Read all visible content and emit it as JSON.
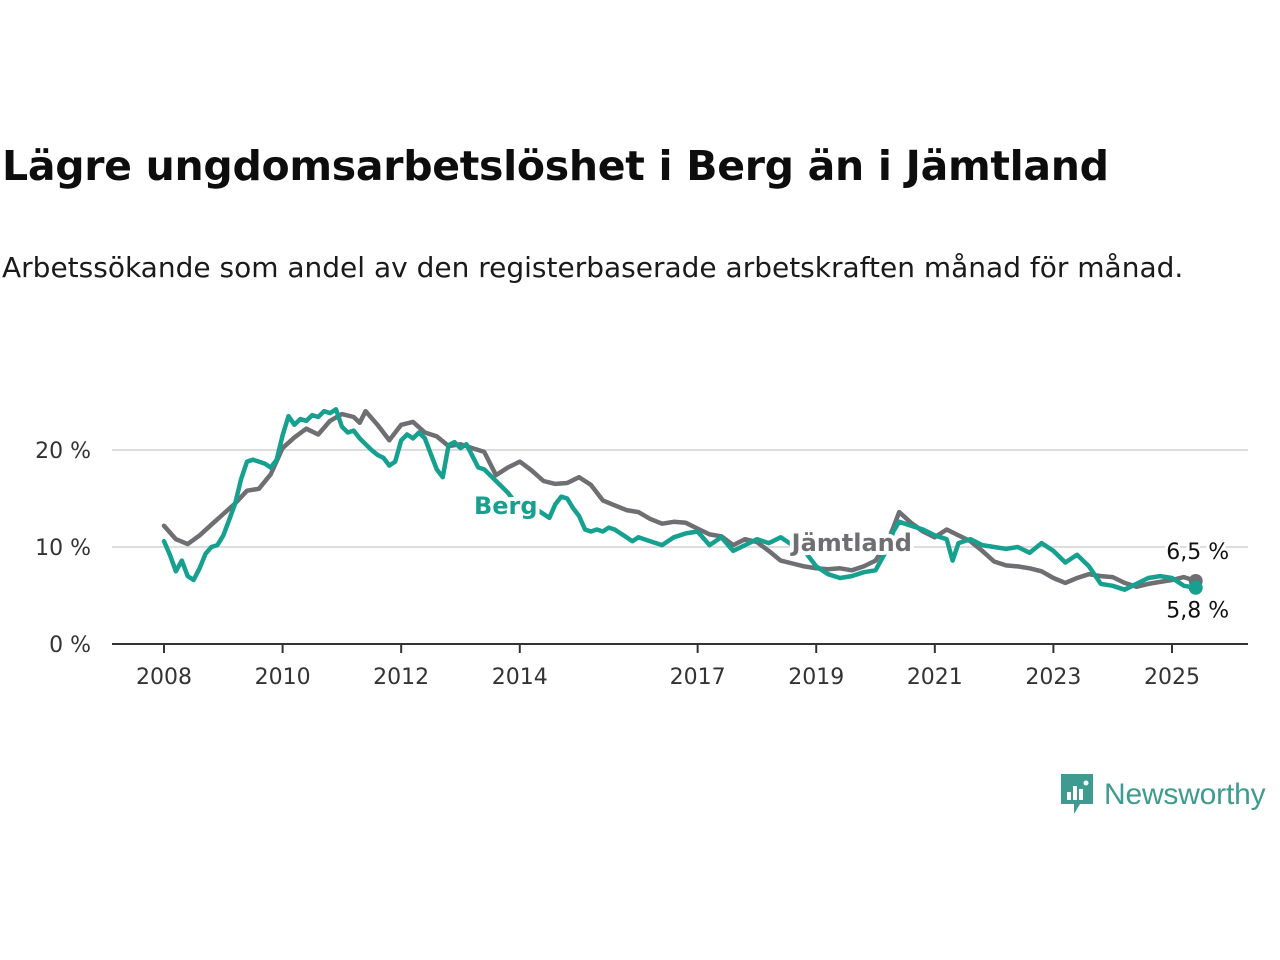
{
  "title": "Lägre ungdomsarbetslöshet i Berg än i Jämtland",
  "subtitle": "Arbetssökande som andel av den registerbaserade arbetskraften månad för månad.",
  "brand": {
    "name": "Newsworthy",
    "color": "#3d9b8f"
  },
  "chart_data": {
    "type": "line",
    "y_ticks": [
      {
        "value": 0,
        "label": "0 %"
      },
      {
        "value": 10,
        "label": "10 %"
      },
      {
        "value": 20,
        "label": "20 %"
      }
    ],
    "x_ticks": [
      "2008",
      "2010",
      "2012",
      "2014",
      "2017",
      "2019",
      "2021",
      "2023",
      "2025"
    ],
    "x_range": [
      2008,
      2026.3
    ],
    "ylim": [
      0,
      25
    ],
    "grid": true,
    "series": [
      {
        "name": "Jämtland",
        "color": "#6e6e73",
        "end_label": "6,5 %",
        "points": [
          [
            2008.0,
            12.2
          ],
          [
            2008.2,
            10.8
          ],
          [
            2008.4,
            10.3
          ],
          [
            2008.6,
            11.2
          ],
          [
            2008.8,
            12.3
          ],
          [
            2009.0,
            13.4
          ],
          [
            2009.2,
            14.5
          ],
          [
            2009.4,
            15.8
          ],
          [
            2009.6,
            16.0
          ],
          [
            2009.8,
            17.5
          ],
          [
            2010.0,
            20.2
          ],
          [
            2010.2,
            21.3
          ],
          [
            2010.4,
            22.2
          ],
          [
            2010.6,
            21.6
          ],
          [
            2010.8,
            23.0
          ],
          [
            2011.0,
            23.7
          ],
          [
            2011.2,
            23.4
          ],
          [
            2011.3,
            22.8
          ],
          [
            2011.4,
            24.0
          ],
          [
            2011.6,
            22.6
          ],
          [
            2011.8,
            21.0
          ],
          [
            2012.0,
            22.6
          ],
          [
            2012.2,
            22.9
          ],
          [
            2012.4,
            21.8
          ],
          [
            2012.6,
            21.4
          ],
          [
            2012.8,
            20.4
          ],
          [
            2013.0,
            20.6
          ],
          [
            2013.2,
            20.2
          ],
          [
            2013.4,
            19.8
          ],
          [
            2013.6,
            17.4
          ],
          [
            2013.8,
            18.2
          ],
          [
            2014.0,
            18.8
          ],
          [
            2014.2,
            17.9
          ],
          [
            2014.4,
            16.8
          ],
          [
            2014.6,
            16.5
          ],
          [
            2014.8,
            16.6
          ],
          [
            2015.0,
            17.2
          ],
          [
            2015.2,
            16.4
          ],
          [
            2015.4,
            14.8
          ],
          [
            2015.6,
            14.3
          ],
          [
            2015.8,
            13.8
          ],
          [
            2016.0,
            13.6
          ],
          [
            2016.2,
            12.9
          ],
          [
            2016.4,
            12.4
          ],
          [
            2016.6,
            12.6
          ],
          [
            2016.8,
            12.5
          ],
          [
            2017.0,
            11.9
          ],
          [
            2017.2,
            11.3
          ],
          [
            2017.4,
            11.1
          ],
          [
            2017.6,
            10.2
          ],
          [
            2017.8,
            10.8
          ],
          [
            2018.0,
            10.5
          ],
          [
            2018.2,
            9.6
          ],
          [
            2018.4,
            8.6
          ],
          [
            2018.6,
            8.3
          ],
          [
            2018.8,
            8.0
          ],
          [
            2019.0,
            7.8
          ],
          [
            2019.2,
            7.7
          ],
          [
            2019.4,
            7.8
          ],
          [
            2019.6,
            7.6
          ],
          [
            2019.8,
            8.0
          ],
          [
            2020.0,
            8.6
          ],
          [
            2020.2,
            10.5
          ],
          [
            2020.3,
            12.0
          ],
          [
            2020.4,
            13.6
          ],
          [
            2020.6,
            12.5
          ],
          [
            2020.8,
            11.6
          ],
          [
            2021.0,
            11.0
          ],
          [
            2021.2,
            11.8
          ],
          [
            2021.4,
            11.2
          ],
          [
            2021.6,
            10.6
          ],
          [
            2021.8,
            9.6
          ],
          [
            2022.0,
            8.5
          ],
          [
            2022.2,
            8.1
          ],
          [
            2022.4,
            8.0
          ],
          [
            2022.6,
            7.8
          ],
          [
            2022.8,
            7.5
          ],
          [
            2023.0,
            6.8
          ],
          [
            2023.2,
            6.3
          ],
          [
            2023.4,
            6.8
          ],
          [
            2023.6,
            7.2
          ],
          [
            2023.8,
            7.0
          ],
          [
            2024.0,
            6.9
          ],
          [
            2024.2,
            6.3
          ],
          [
            2024.4,
            5.9
          ],
          [
            2024.6,
            6.2
          ],
          [
            2024.8,
            6.4
          ],
          [
            2025.0,
            6.6
          ],
          [
            2025.2,
            6.9
          ],
          [
            2025.4,
            6.5
          ]
        ]
      },
      {
        "name": "Berg",
        "color": "#15a08f",
        "end_label": "5,8 %",
        "points": [
          [
            2008.0,
            10.6
          ],
          [
            2008.1,
            9.2
          ],
          [
            2008.2,
            7.5
          ],
          [
            2008.3,
            8.6
          ],
          [
            2008.4,
            7.0
          ],
          [
            2008.5,
            6.6
          ],
          [
            2008.6,
            7.8
          ],
          [
            2008.7,
            9.3
          ],
          [
            2008.8,
            10.0
          ],
          [
            2008.9,
            10.2
          ],
          [
            2009.0,
            11.2
          ],
          [
            2009.1,
            12.8
          ],
          [
            2009.2,
            14.5
          ],
          [
            2009.3,
            17.0
          ],
          [
            2009.4,
            18.8
          ],
          [
            2009.5,
            19.0
          ],
          [
            2009.6,
            18.8
          ],
          [
            2009.7,
            18.6
          ],
          [
            2009.8,
            18.2
          ],
          [
            2009.9,
            19.0
          ],
          [
            2010.0,
            21.5
          ],
          [
            2010.1,
            23.5
          ],
          [
            2010.2,
            22.6
          ],
          [
            2010.3,
            23.2
          ],
          [
            2010.4,
            23.0
          ],
          [
            2010.5,
            23.6
          ],
          [
            2010.6,
            23.4
          ],
          [
            2010.7,
            24.0
          ],
          [
            2010.8,
            23.8
          ],
          [
            2010.9,
            24.2
          ],
          [
            2011.0,
            22.4
          ],
          [
            2011.1,
            21.8
          ],
          [
            2011.2,
            22.0
          ],
          [
            2011.3,
            21.2
          ],
          [
            2011.4,
            20.6
          ],
          [
            2011.5,
            20.0
          ],
          [
            2011.6,
            19.5
          ],
          [
            2011.7,
            19.2
          ],
          [
            2011.8,
            18.4
          ],
          [
            2011.9,
            18.8
          ],
          [
            2012.0,
            21.0
          ],
          [
            2012.1,
            21.6
          ],
          [
            2012.2,
            21.2
          ],
          [
            2012.3,
            21.8
          ],
          [
            2012.4,
            21.2
          ],
          [
            2012.5,
            19.6
          ],
          [
            2012.6,
            18.0
          ],
          [
            2012.7,
            17.2
          ],
          [
            2012.8,
            20.5
          ],
          [
            2012.9,
            20.8
          ],
          [
            2013.0,
            20.2
          ],
          [
            2013.1,
            20.6
          ],
          [
            2013.2,
            19.4
          ],
          [
            2013.3,
            18.2
          ],
          [
            2013.4,
            18.0
          ],
          [
            2013.5,
            17.4
          ],
          [
            2013.6,
            16.8
          ],
          [
            2013.7,
            16.2
          ],
          [
            2013.8,
            15.6
          ],
          [
            2013.9,
            14.8
          ],
          [
            2014.0,
            14.2
          ],
          [
            2014.1,
            13.6
          ],
          [
            2014.2,
            13.2
          ],
          [
            2014.3,
            13.8
          ],
          [
            2014.4,
            13.4
          ],
          [
            2014.5,
            13.0
          ],
          [
            2014.6,
            14.4
          ],
          [
            2014.7,
            15.2
          ],
          [
            2014.8,
            15.0
          ],
          [
            2014.9,
            14.0
          ],
          [
            2015.0,
            13.2
          ],
          [
            2015.1,
            11.8
          ],
          [
            2015.2,
            11.6
          ],
          [
            2015.3,
            11.8
          ],
          [
            2015.4,
            11.6
          ],
          [
            2015.5,
            12.0
          ],
          [
            2015.6,
            11.8
          ],
          [
            2015.7,
            11.4
          ],
          [
            2015.8,
            11.0
          ],
          [
            2015.9,
            10.6
          ],
          [
            2016.0,
            11.0
          ],
          [
            2016.2,
            10.6
          ],
          [
            2016.4,
            10.2
          ],
          [
            2016.6,
            11.0
          ],
          [
            2016.8,
            11.4
          ],
          [
            2017.0,
            11.6
          ],
          [
            2017.2,
            10.2
          ],
          [
            2017.4,
            11.0
          ],
          [
            2017.6,
            9.6
          ],
          [
            2017.8,
            10.2
          ],
          [
            2018.0,
            10.8
          ],
          [
            2018.2,
            10.4
          ],
          [
            2018.4,
            11.0
          ],
          [
            2018.6,
            10.2
          ],
          [
            2018.8,
            9.6
          ],
          [
            2019.0,
            8.0
          ],
          [
            2019.2,
            7.2
          ],
          [
            2019.4,
            6.8
          ],
          [
            2019.6,
            7.0
          ],
          [
            2019.8,
            7.4
          ],
          [
            2020.0,
            7.6
          ],
          [
            2020.2,
            9.8
          ],
          [
            2020.3,
            11.6
          ],
          [
            2020.4,
            12.6
          ],
          [
            2020.6,
            12.2
          ],
          [
            2020.8,
            11.8
          ],
          [
            2021.0,
            11.2
          ],
          [
            2021.2,
            10.8
          ],
          [
            2021.3,
            8.6
          ],
          [
            2021.4,
            10.4
          ],
          [
            2021.6,
            10.8
          ],
          [
            2021.8,
            10.2
          ],
          [
            2022.0,
            10.0
          ],
          [
            2022.2,
            9.8
          ],
          [
            2022.4,
            10.0
          ],
          [
            2022.6,
            9.4
          ],
          [
            2022.8,
            10.4
          ],
          [
            2023.0,
            9.6
          ],
          [
            2023.2,
            8.4
          ],
          [
            2023.4,
            9.2
          ],
          [
            2023.6,
            8.0
          ],
          [
            2023.8,
            6.2
          ],
          [
            2024.0,
            6.0
          ],
          [
            2024.2,
            5.6
          ],
          [
            2024.4,
            6.2
          ],
          [
            2024.6,
            6.8
          ],
          [
            2024.8,
            7.0
          ],
          [
            2025.0,
            6.8
          ],
          [
            2025.2,
            6.0
          ],
          [
            2025.4,
            5.8
          ]
        ]
      }
    ]
  }
}
